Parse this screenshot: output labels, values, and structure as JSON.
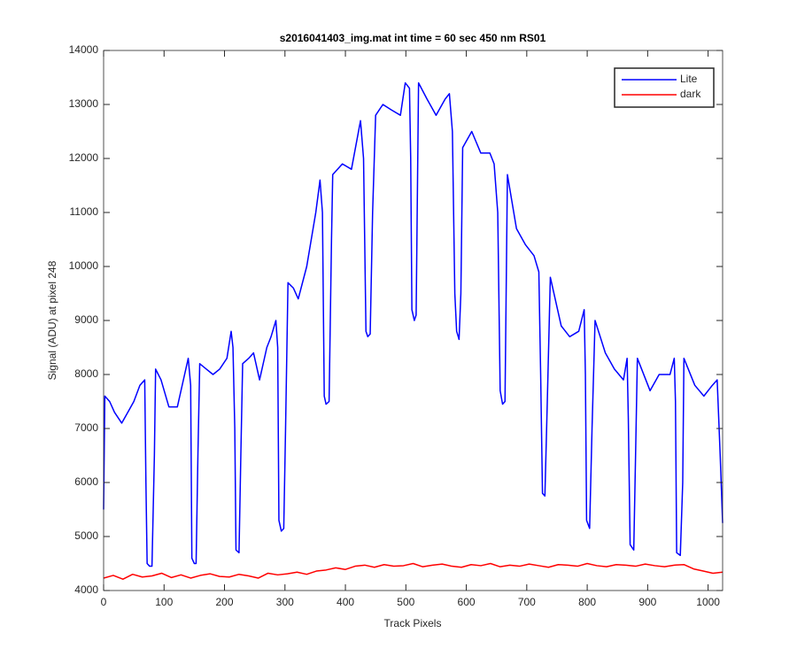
{
  "chart_data": {
    "type": "line",
    "title": "s2016041403_img.mat int time = 60 sec  450 nm RS01",
    "xlabel": "Track Pixels",
    "ylabel": "Signal (ADU) at pixel 248",
    "xlim": [
      0,
      1024
    ],
    "ylim": [
      4000,
      14000
    ],
    "xticks": [
      0,
      100,
      200,
      300,
      400,
      500,
      600,
      700,
      800,
      900,
      1000
    ],
    "yticks": [
      4000,
      5000,
      6000,
      7000,
      8000,
      9000,
      10000,
      11000,
      12000,
      13000,
      14000
    ],
    "legend": "upper right",
    "series": [
      {
        "name": "Lite",
        "color": "#0000ff",
        "x": [
          0,
          2,
          10,
          18,
          30,
          40,
          50,
          60,
          68,
          70,
          72,
          76,
          80,
          84,
          86,
          95,
          108,
          122,
          134,
          140,
          144,
          146,
          150,
          153,
          156,
          159,
          170,
          181,
          192,
          204,
          211,
          214,
          217,
          219,
          224,
          227,
          230,
          240,
          248,
          258,
          270,
          277,
          285,
          288,
          290,
          294,
          298,
          301,
          305,
          314,
          322,
          336,
          351,
          358,
          362,
          365,
          368,
          373,
          377,
          379,
          395,
          410,
          425,
          430,
          434,
          437,
          441,
          445,
          450,
          462,
          476,
          491,
          499,
          506,
          508,
          510,
          514,
          517,
          521,
          535,
          550,
          565,
          572,
          577,
          581,
          584,
          588,
          591,
          594,
          609,
          624,
          639,
          646,
          652,
          656,
          660,
          664,
          668,
          683,
          698,
          712,
          720,
          723,
          726,
          730,
          734,
          739,
          757,
          771,
          786,
          795,
          797,
          799,
          804,
          808,
          813,
          830,
          845,
          860,
          866,
          868,
          871,
          877,
          880,
          883,
          904,
          919,
          937,
          944,
          946,
          948,
          954,
          958,
          960,
          978,
          993,
          1007,
          1015,
          1020,
          1024
        ],
        "values": [
          5500,
          7600,
          7500,
          7300,
          7100,
          7300,
          7500,
          7800,
          7900,
          6000,
          4500,
          4450,
          4450,
          6500,
          8100,
          7900,
          7400,
          7400,
          8000,
          8300,
          7800,
          4600,
          4500,
          4500,
          6500,
          8200,
          8100,
          8000,
          8100,
          8300,
          8800,
          8500,
          7000,
          4750,
          4700,
          6500,
          8200,
          8300,
          8400,
          7900,
          8500,
          8700,
          9000,
          8500,
          5300,
          5100,
          5150,
          7000,
          9700,
          9600,
          9400,
          10000,
          11000,
          11600,
          11000,
          7600,
          7450,
          7500,
          10500,
          11700,
          11900,
          11800,
          12700,
          12000,
          8800,
          8700,
          8750,
          11000,
          12800,
          13000,
          12900,
          12800,
          13400,
          13300,
          12000,
          9200,
          9000,
          9100,
          13400,
          13100,
          12800,
          13100,
          13200,
          12500,
          9500,
          8800,
          8650,
          9500,
          12200,
          12500,
          12100,
          12100,
          11900,
          11000,
          7700,
          7450,
          7500,
          11700,
          10700,
          10400,
          10200,
          9900,
          8000,
          5800,
          5750,
          7500,
          9800,
          8900,
          8700,
          8800,
          9200,
          8000,
          5300,
          5150,
          7000,
          9000,
          8400,
          8100,
          7900,
          8300,
          7200,
          4850,
          4750,
          6500,
          8300,
          7700,
          8000,
          8000,
          8300,
          7500,
          4700,
          4650,
          6000,
          8300,
          7800,
          7600,
          7800,
          7900,
          6500,
          5250
        ]
      },
      {
        "name": "dark",
        "color": "#ff0000",
        "x": [
          0,
          16,
          32,
          48,
          64,
          80,
          96,
          112,
          128,
          144,
          160,
          176,
          192,
          208,
          224,
          240,
          256,
          272,
          288,
          304,
          320,
          336,
          352,
          368,
          384,
          400,
          416,
          432,
          448,
          464,
          480,
          496,
          512,
          528,
          544,
          560,
          576,
          592,
          608,
          624,
          640,
          656,
          672,
          688,
          704,
          720,
          736,
          752,
          768,
          784,
          800,
          816,
          832,
          848,
          864,
          880,
          896,
          912,
          928,
          944,
          960,
          976,
          992,
          1008,
          1024
        ],
        "values": [
          4230,
          4280,
          4210,
          4300,
          4250,
          4270,
          4320,
          4240,
          4290,
          4230,
          4280,
          4310,
          4260,
          4250,
          4300,
          4270,
          4230,
          4320,
          4290,
          4310,
          4340,
          4300,
          4360,
          4380,
          4420,
          4390,
          4450,
          4470,
          4430,
          4480,
          4450,
          4460,
          4500,
          4440,
          4470,
          4490,
          4450,
          4430,
          4480,
          4460,
          4500,
          4440,
          4470,
          4450,
          4490,
          4460,
          4430,
          4480,
          4470,
          4450,
          4500,
          4460,
          4440,
          4480,
          4470,
          4450,
          4490,
          4460,
          4440,
          4470,
          4480,
          4400,
          4360,
          4320,
          4340
        ]
      }
    ]
  }
}
